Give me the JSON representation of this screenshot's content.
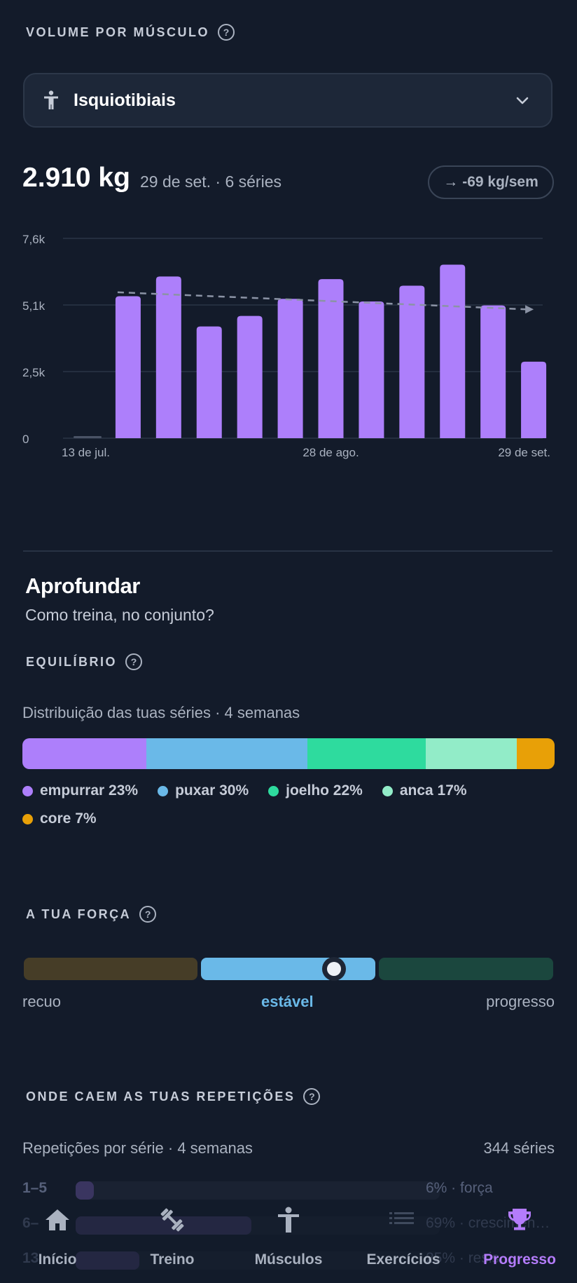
{
  "volume_section": {
    "title": "VOLUME POR MÚSCULO",
    "help": "?",
    "selected_muscle": "Isquiotibiais",
    "current_value": "2.910 kg",
    "current_detail": "29 de set. · 6 séries",
    "trend_arrow": "→",
    "trend": "-69 kg/sem"
  },
  "chart_data": {
    "type": "bar",
    "y_ticks": [
      "7,6k",
      "5,1k",
      "2,5k",
      "0"
    ],
    "ylim": [
      0,
      7600
    ],
    "x_labels": [
      {
        "label": "13 de jul.",
        "index": 0
      },
      {
        "label": "28 de ago.",
        "index": 6
      },
      {
        "label": "29 de set.",
        "index": 11
      }
    ],
    "values": [
      100,
      5400,
      6150,
      4250,
      4650,
      5300,
      6050,
      5200,
      5800,
      6600,
      5050,
      2910
    ],
    "empty_first": true,
    "trendline": {
      "start": 5550,
      "end": 4900,
      "dashed": true
    },
    "colors": {
      "bar": "#ad7ffb",
      "empty": "#4a5366",
      "trend": "#8b93a5",
      "grid": "#2a3446",
      "tick": "#aab2c0"
    },
    "grid": true
  },
  "deeper": {
    "title": "Aprofundar",
    "subtitle": "Como treina, no conjunto?"
  },
  "balance": {
    "title": "EQUILÍBRIO",
    "help": "?",
    "caption": "Distribuição das tuas séries · 4 semanas",
    "segments": [
      {
        "label": "empurrar 23%",
        "percent": 23,
        "color": "#ad7ffb"
      },
      {
        "label": "puxar 30%",
        "percent": 30,
        "color": "#6ab9e8"
      },
      {
        "label": "joelho 22%",
        "percent": 22,
        "color": "#2edb9e"
      },
      {
        "label": "anca 17%",
        "percent": 17,
        "color": "#92ecc8"
      },
      {
        "label": "core 7%",
        "percent": 7,
        "color": "#e8a007"
      }
    ]
  },
  "strength": {
    "title": "A TUA FORÇA",
    "help": "?",
    "labels": {
      "left": "recuo",
      "mid": "estável",
      "right": "progresso"
    },
    "colors": {
      "left": "#463d27",
      "mid": "#6ab9e8",
      "right": "#1b473e"
    }
  },
  "reps": {
    "title": "ONDE CAEM AS TUAS REPETIÇÕES",
    "help": "?",
    "caption": "Repetições por série · 4 semanas",
    "total": "344 séries",
    "rows": [
      {
        "label": "1–5",
        "percent": 6,
        "text": "6% · força"
      },
      {
        "label": "6–",
        "percent": 69,
        "text": "69% · crescimen…"
      },
      {
        "label": "13",
        "percent": 25,
        "text": "25% · resis…"
      }
    ]
  },
  "nav": [
    {
      "label": "Início",
      "icon": "home-icon",
      "active": false
    },
    {
      "label": "Treino",
      "icon": "dumbbell-icon",
      "active": false
    },
    {
      "label": "Músculos",
      "icon": "person-icon",
      "active": false
    },
    {
      "label": "Exercícios",
      "icon": "list-icon",
      "active": false
    },
    {
      "label": "Progresso",
      "icon": "trophy-icon",
      "active": true
    }
  ]
}
